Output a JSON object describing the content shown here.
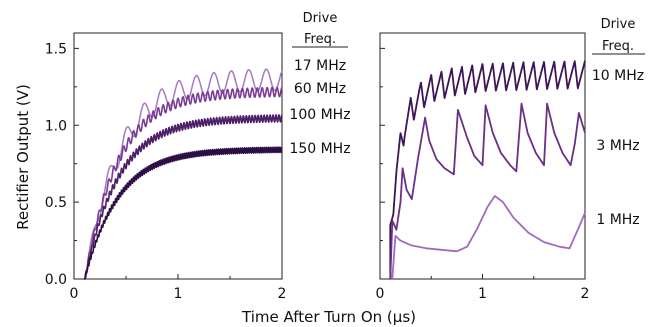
{
  "chart_data": [
    {
      "type": "line",
      "xlabel": "Time After Turn On (µs)",
      "ylabel": "Rectifier Output (V)",
      "xlim": [
        0,
        2
      ],
      "ylim": [
        0,
        1.6
      ],
      "x_ticks": [
        "0",
        "1",
        "2"
      ],
      "y_ticks": [
        "0.0",
        "0.5",
        "1.0",
        "1.5"
      ],
      "legend": {
        "title": [
          "Drive",
          "Freq."
        ],
        "placement": "right, beside each trace"
      },
      "grid": false,
      "series": [
        {
          "name": "17 MHz",
          "freq_mhz": 17,
          "start_us": 0.1,
          "steady_v": 1.37,
          "ripple_v": 0.14,
          "color": "#a877c4",
          "stroke": 1.5
        },
        {
          "name": "60 MHz",
          "freq_mhz": 60,
          "start_us": 0.1,
          "steady_v": 1.25,
          "ripple_v": 0.06,
          "color": "#7a3c94",
          "stroke": 1.6
        },
        {
          "name": "100 MHz",
          "freq_mhz": 100,
          "start_us": 0.1,
          "steady_v": 1.07,
          "ripple_v": 0.045,
          "color": "#4c1f66",
          "stroke": 1.6
        },
        {
          "name": "150 MHz",
          "freq_mhz": 150,
          "start_us": 0.1,
          "steady_v": 0.86,
          "ripple_v": 0.035,
          "color": "#2d0e44",
          "stroke": 1.6
        }
      ]
    },
    {
      "type": "line",
      "xlabel": "Time After Turn On (µs)",
      "ylabel": "Rectifier Output (V)",
      "xlim": [
        0,
        2
      ],
      "ylim": [
        0,
        1.6
      ],
      "x_ticks": [
        "0",
        "1",
        "2"
      ],
      "legend": {
        "title": [
          "Drive",
          "Freq."
        ],
        "placement": "right, beside each trace"
      },
      "grid": false,
      "series": [
        {
          "name": "10 MHz",
          "color": "#3d1457",
          "x": [
            0.1,
            0.13,
            0.16,
            0.2,
            0.24,
            0.3,
            0.38,
            0.5,
            0.7,
            1.0,
            1.4,
            2.0
          ],
          "peak_v": [
            0.35,
            0.6,
            0.8,
            0.95,
            1.08,
            1.18,
            1.27,
            1.33,
            1.37,
            1.4,
            1.41,
            1.42
          ],
          "ripple_v": 0.18,
          "period_us": 0.1
        },
        {
          "name": "3 MHz",
          "color": "#6a2f86",
          "x": [
            0.1,
            0.12,
            0.16,
            0.2,
            0.22,
            0.26,
            0.31,
            0.37,
            0.44,
            0.48,
            0.55,
            0.63,
            0.72,
            0.76,
            0.85,
            0.92,
            1.0,
            1.03,
            1.1,
            1.18,
            1.27,
            1.33,
            1.38,
            1.44,
            1.52,
            1.6,
            1.63,
            1.7,
            1.78,
            1.86,
            1.9,
            1.94,
            2.0
          ],
          "y": [
            0.0,
            0.38,
            0.32,
            0.5,
            0.72,
            0.58,
            0.52,
            0.78,
            1.05,
            0.9,
            0.78,
            0.72,
            0.68,
            1.1,
            0.92,
            0.8,
            0.74,
            1.13,
            0.95,
            0.82,
            0.74,
            0.7,
            1.14,
            0.95,
            0.82,
            0.74,
            1.14,
            0.95,
            0.82,
            0.74,
            0.88,
            1.08,
            0.95
          ]
        },
        {
          "name": "1 MHz",
          "color": "#a06bbf",
          "x": [
            0.12,
            0.15,
            0.2,
            0.3,
            0.45,
            0.6,
            0.75,
            0.85,
            0.95,
            1.05,
            1.12,
            1.2,
            1.3,
            1.45,
            1.6,
            1.75,
            1.85,
            1.93,
            2.0
          ],
          "y": [
            0.0,
            0.28,
            0.25,
            0.22,
            0.2,
            0.19,
            0.18,
            0.21,
            0.33,
            0.47,
            0.54,
            0.5,
            0.4,
            0.3,
            0.24,
            0.21,
            0.2,
            0.32,
            0.43
          ]
        }
      ]
    }
  ]
}
